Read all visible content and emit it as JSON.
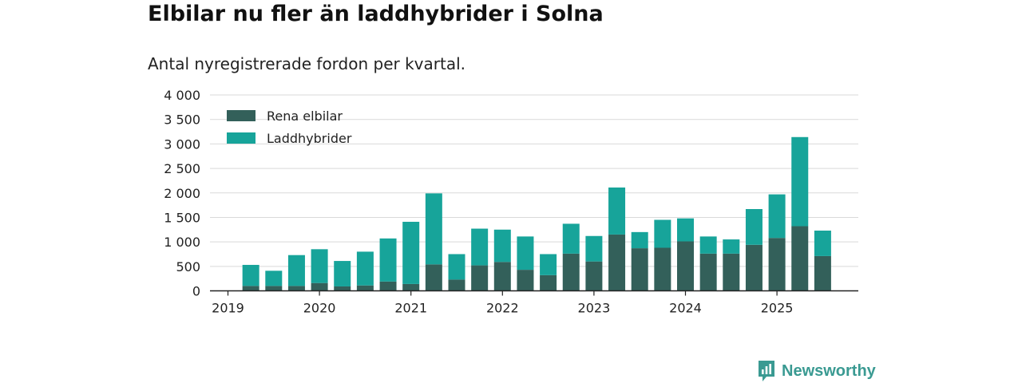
{
  "chart_data": {
    "type": "bar",
    "stacked": true,
    "title": "Elbilar nu fler än laddhybrider i Solna",
    "subtitle": "Antal nyregistrerade fordon per kvartal.",
    "xlabel": "",
    "ylabel": "",
    "ylim": [
      0,
      4000
    ],
    "yticks": [
      0,
      500,
      1000,
      1500,
      2000,
      2500,
      3000,
      3500,
      4000
    ],
    "ytick_labels": [
      "0",
      "500",
      "1 000",
      "1 500",
      "2 000",
      "2 500",
      "3 000",
      "3 500",
      "4 000"
    ],
    "xtick_labels": [
      "2019",
      "2020",
      "2021",
      "2022",
      "2023",
      "2024",
      "2025"
    ],
    "xtick_quarter_index": [
      0,
      4,
      8,
      12,
      16,
      20,
      24
    ],
    "categories": [
      "2019 Q1",
      "2019 Q2",
      "2019 Q3",
      "2019 Q4",
      "2020 Q1",
      "2020 Q2",
      "2020 Q3",
      "2020 Q4",
      "2021 Q1",
      "2021 Q2",
      "2021 Q3",
      "2021 Q4",
      "2022 Q1",
      "2022 Q2",
      "2022 Q3",
      "2022 Q4",
      "2023 Q1",
      "2023 Q2",
      "2023 Q3",
      "2023 Q4",
      "2024 Q1",
      "2024 Q2",
      "2024 Q3",
      "2024 Q4",
      "2025 Q1",
      "2025 Q2",
      "2025 Q3"
    ],
    "series": [
      {
        "name": "Rena elbilar",
        "color": "#33605a",
        "values": [
          0,
          100,
          100,
          100,
          160,
          90,
          110,
          190,
          140,
          540,
          230,
          520,
          590,
          430,
          320,
          760,
          600,
          1150,
          870,
          880,
          1010,
          760,
          760,
          940,
          1080,
          1320,
          710
        ]
      },
      {
        "name": "Laddhybrider",
        "color": "#17a49a",
        "values": [
          0,
          430,
          310,
          630,
          690,
          520,
          690,
          880,
          1270,
          1450,
          520,
          750,
          660,
          680,
          430,
          610,
          520,
          960,
          330,
          570,
          470,
          350,
          290,
          730,
          890,
          1820,
          520
        ]
      }
    ],
    "legend_position": "top-left",
    "grid": true
  },
  "brand": {
    "name": "Newsworthy",
    "color": "#3a9a92"
  }
}
